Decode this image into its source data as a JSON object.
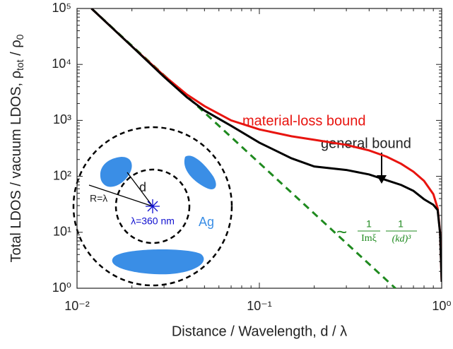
{
  "chart_data": {
    "type": "line",
    "xlabel": "Distance / Wavelength, d / λ",
    "ylabel": {
      "main": "Total LDOS / vacuum LDOS, ρ",
      "sub1": "tot",
      "mid": " / ρ",
      "sub2": "0"
    },
    "xlog": true,
    "ylog": true,
    "xlim": [
      0.01,
      1
    ],
    "ylim": [
      1,
      100000
    ],
    "xticks": [
      {
        "value": 0.01,
        "label": "10⁻²"
      },
      {
        "value": 0.1,
        "label": "10⁻¹"
      },
      {
        "value": 1,
        "label": "10⁰"
      }
    ],
    "yticks": [
      {
        "value": 1,
        "label": "10⁰"
      },
      {
        "value": 10,
        "label": "10¹"
      },
      {
        "value": 100,
        "label": "10²"
      },
      {
        "value": 1000,
        "label": "10³"
      },
      {
        "value": 10000,
        "label": "10⁴"
      },
      {
        "value": 100000,
        "label": "10⁵"
      }
    ],
    "series": [
      {
        "name": "material-loss bound",
        "color": "#e8140f",
        "dashed": false,
        "x": [
          0.012,
          0.02,
          0.03,
          0.04,
          0.05,
          0.07,
          0.1,
          0.15,
          0.2,
          0.3,
          0.4,
          0.5,
          0.6,
          0.7,
          0.8,
          0.9,
          0.95,
          0.98,
          1.0
        ],
        "values": [
          100000,
          21000,
          6300,
          2900,
          1800,
          1000,
          690,
          520,
          450,
          365,
          290,
          224,
          167,
          121,
          83,
          48,
          27,
          10,
          1.3
        ]
      },
      {
        "name": "general bound",
        "color": "#000000",
        "dashed": false,
        "x": [
          0.012,
          0.02,
          0.03,
          0.04,
          0.05,
          0.07,
          0.1,
          0.15,
          0.2,
          0.3,
          0.4,
          0.5,
          0.6,
          0.7,
          0.8,
          0.9,
          0.95,
          0.98,
          1.0
        ],
        "values": [
          100000,
          21000,
          6000,
          2600,
          1500,
          800,
          400,
          210,
          150,
          130,
          108,
          85,
          70,
          55,
          39,
          31,
          25,
          9.6,
          1.3
        ]
      },
      {
        "name": "asymptote",
        "color": "#1f8a1f",
        "dashed": true,
        "x": [
          0.012,
          0.6
        ],
        "values": [
          100000,
          0.8
        ]
      }
    ],
    "formula": {
      "prefix": "~",
      "num1": "1",
      "den1": "Imξ",
      "num2": "1",
      "den2": "(kd)³"
    },
    "inset": {
      "d": "d",
      "R": "R=λ",
      "material": "Ag",
      "wavelength": "λ=360 nm"
    }
  }
}
